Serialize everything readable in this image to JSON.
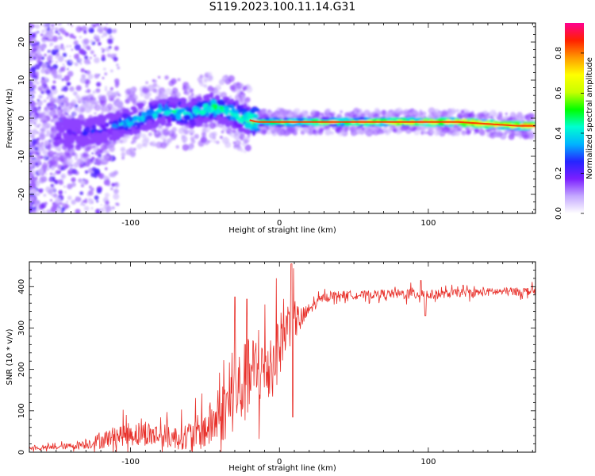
{
  "figure": {
    "title": "S119.2023.100.11.14.G31"
  },
  "chart_data": [
    {
      "type": "heatmap",
      "xlabel": "Height of straight line (km)",
      "ylabel": "Frequency (Hz)",
      "xlim": [
        -168,
        172
      ],
      "ylim": [
        -25,
        25
      ],
      "x_ticks": [
        -100,
        0,
        100
      ],
      "y_ticks": [
        -20,
        -10,
        0,
        10,
        20
      ],
      "colorbar": {
        "label": "Normalized spectral amplitude",
        "range": [
          0.0,
          0.95
        ],
        "ticks": [
          "0.0",
          "0.2",
          "0.4",
          "0.6",
          "0.8"
        ],
        "colors": [
          "#ffffff",
          "#c4a8ff",
          "#7b1fff",
          "#2525ff",
          "#00b4ff",
          "#00ffd0",
          "#00ff00",
          "#c8ff00",
          "#ffff00",
          "#ff9a00",
          "#ff2000",
          "#ff0090"
        ]
      },
      "ridge": {
        "x": [
          -140,
          -120,
          -100,
          -80,
          -60,
          -45,
          -35,
          -25,
          -15,
          0,
          20,
          50,
          80,
          100,
          120,
          140,
          160,
          170
        ],
        "frequency": [
          -4,
          -3,
          -1,
          2,
          1,
          3,
          2,
          0,
          -1,
          -1,
          -1,
          -1,
          -1,
          -1,
          -1,
          -1.5,
          -2,
          -2
        ],
        "amplitude": [
          0.3,
          0.35,
          0.45,
          0.5,
          0.5,
          0.55,
          0.5,
          0.55,
          0.65,
          0.7,
          0.72,
          0.75,
          0.8,
          0.82,
          0.85,
          0.85,
          0.86,
          0.86
        ]
      }
    },
    {
      "type": "line",
      "xlabel": "Height of straight line (km)",
      "ylabel": "SNR (10 * v/v)",
      "xlim": [
        -168,
        172
      ],
      "ylim": [
        0,
        460
      ],
      "x_ticks": [
        -100,
        0,
        100
      ],
      "y_ticks": [
        0,
        100,
        200,
        300,
        400
      ],
      "color": "#e8302a",
      "x": [
        -168,
        -160,
        -150,
        -140,
        -130,
        -120,
        -110,
        -100,
        -90,
        -80,
        -70,
        -60,
        -50,
        -45,
        -40,
        -35,
        -30,
        -25,
        -20,
        -15,
        -10,
        -5,
        0,
        5,
        8,
        10,
        15,
        20,
        25,
        30,
        40,
        50,
        60,
        70,
        80,
        90,
        95,
        100,
        110,
        120,
        130,
        140,
        150,
        160,
        172
      ],
      "values": [
        10,
        10,
        12,
        15,
        20,
        28,
        40,
        45,
        45,
        40,
        35,
        40,
        55,
        70,
        90,
        110,
        140,
        160,
        180,
        200,
        200,
        220,
        260,
        300,
        330,
        320,
        320,
        345,
        360,
        375,
        380,
        380,
        380,
        383,
        382,
        383,
        385,
        380,
        382,
        385,
        385,
        387,
        388,
        388,
        390
      ],
      "spread": [
        4,
        5,
        6,
        8,
        12,
        20,
        25,
        30,
        30,
        30,
        28,
        35,
        50,
        60,
        70,
        80,
        90,
        100,
        100,
        95,
        90,
        90,
        80,
        60,
        70,
        50,
        30,
        15,
        12,
        10,
        10,
        10,
        10,
        10,
        12,
        15,
        20,
        12,
        10,
        10,
        10,
        10,
        10,
        10,
        10
      ],
      "annotations_peaks": [
        {
          "x": -30,
          "y": 375
        },
        {
          "x": -22,
          "y": 370
        },
        {
          "x": 8,
          "y": 455
        },
        {
          "x": 95,
          "y": 415
        }
      ],
      "annotations_dips": [
        {
          "x": 9,
          "y": 85
        },
        {
          "x": 98,
          "y": 330
        }
      ]
    }
  ]
}
